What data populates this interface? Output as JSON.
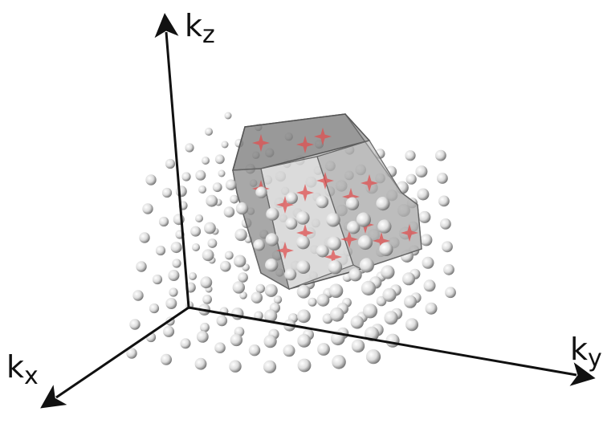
{
  "axes": {
    "z": {
      "base": "k",
      "sub": "z"
    },
    "y": {
      "base": "k",
      "sub": "y"
    },
    "x": {
      "base": "k",
      "sub": "x"
    }
  }
}
